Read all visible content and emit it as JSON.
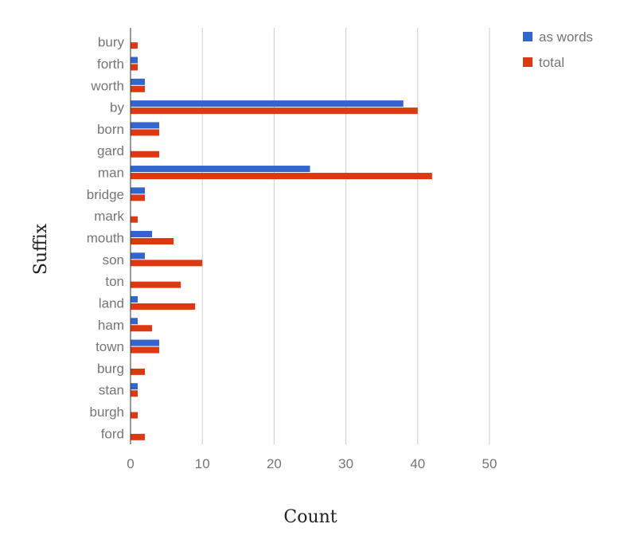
{
  "chart_data": {
    "type": "bar",
    "orientation": "horizontal",
    "categories": [
      "bury",
      "forth",
      "worth",
      "by",
      "born",
      "gard",
      "man",
      "bridge",
      "mark",
      "mouth",
      "son",
      "ton",
      "land",
      "ham",
      "town",
      "burg",
      "stan",
      "burgh",
      "ford"
    ],
    "series": [
      {
        "name": "as words",
        "color": "#3366cc",
        "values": [
          0,
          1,
          2,
          38,
          4,
          0,
          25,
          2,
          0,
          3,
          2,
          0,
          1,
          1,
          4,
          0,
          1,
          0,
          0
        ]
      },
      {
        "name": "total",
        "color": "#dc3912",
        "values": [
          1,
          1,
          2,
          40,
          4,
          4,
          42,
          2,
          1,
          6,
          10,
          7,
          9,
          3,
          4,
          2,
          1,
          1,
          2
        ]
      }
    ],
    "xlabel": "Count",
    "ylabel": "Suffix",
    "xlim": [
      0,
      50
    ],
    "xticks": [
      0,
      10,
      20,
      30,
      40,
      50
    ],
    "grid": true,
    "legend_position": "top-right"
  }
}
